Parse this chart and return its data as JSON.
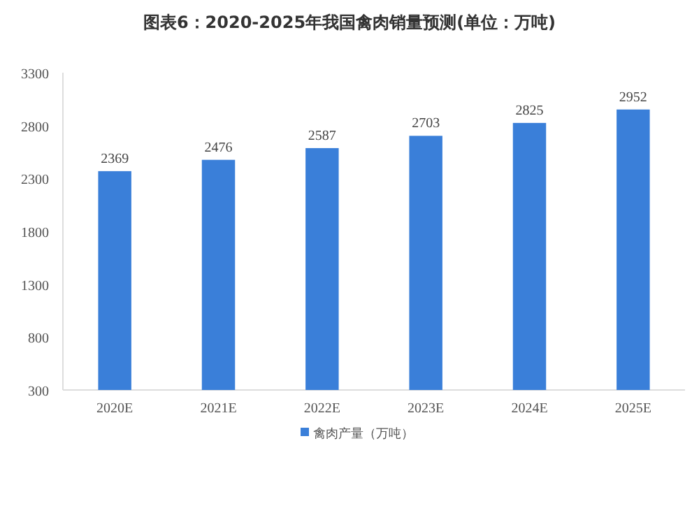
{
  "chart_data": {
    "type": "bar",
    "title": "图表6：2020-2025年我国禽肉销量预测(单位：万吨)",
    "categories": [
      "2020E",
      "2021E",
      "2022E",
      "2023E",
      "2024E",
      "2025E"
    ],
    "series": [
      {
        "name": "禽肉产量（万吨）",
        "color": "#3a7fd9",
        "values": [
          2369,
          2476,
          2587,
          2703,
          2825,
          2952
        ]
      }
    ],
    "ylim": [
      300,
      3300
    ],
    "yticks": [
      300,
      800,
      1300,
      1800,
      2300,
      2800,
      3300
    ],
    "data_labels": true,
    "legend": "bottom",
    "grid": false
  }
}
